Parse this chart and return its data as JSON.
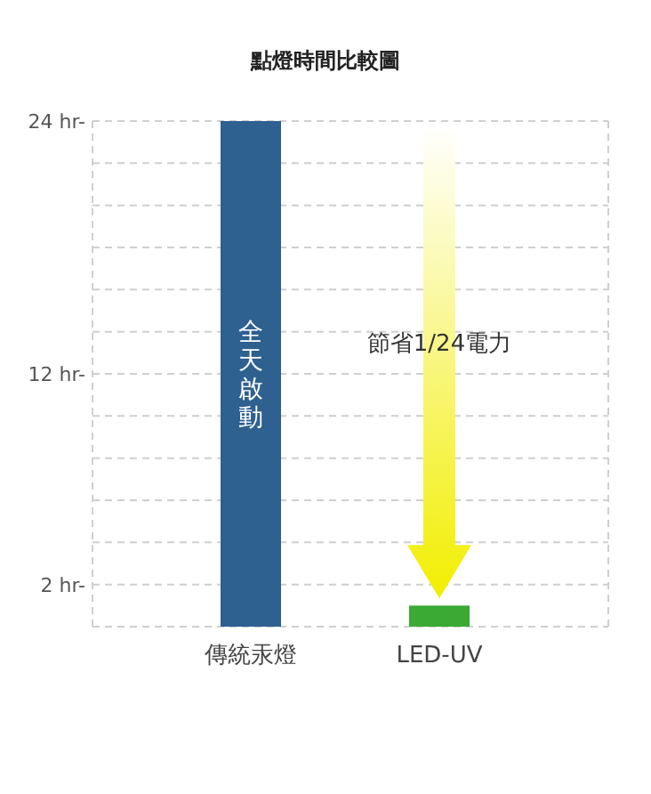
{
  "chart_data": {
    "type": "bar",
    "title": "點燈時間比較圖",
    "categories": [
      "傳統汞燈",
      "LED-UV"
    ],
    "values": [
      24,
      1
    ],
    "colors": [
      "#2e6090",
      "#3aaa35"
    ],
    "ylim": [
      0,
      24
    ],
    "yticks": [
      {
        "value": 0,
        "label": null
      },
      {
        "value": 2,
        "label": "2 hr-"
      },
      {
        "value": 4,
        "label": null
      },
      {
        "value": 6,
        "label": null
      },
      {
        "value": 8,
        "label": null
      },
      {
        "value": 10,
        "label": null
      },
      {
        "value": 12,
        "label": "12 hr-"
      },
      {
        "value": 14,
        "label": null
      },
      {
        "value": 16,
        "label": null
      },
      {
        "value": 18,
        "label": null
      },
      {
        "value": 20,
        "label": null
      },
      {
        "value": 22,
        "label": null
      },
      {
        "value": 24,
        "label": "24 hr-"
      }
    ],
    "grid": "y",
    "annotations": [
      "全天啟動",
      "節省1/24電力"
    ]
  }
}
